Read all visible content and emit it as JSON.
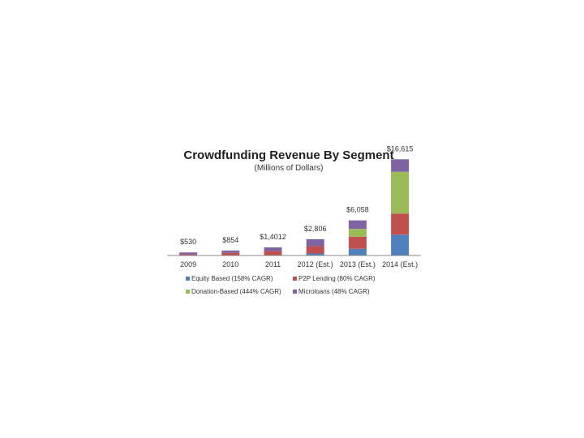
{
  "chart_data": {
    "type": "bar",
    "stacked": true,
    "title": "Crowdfunding Revenue By Segment",
    "subtitle": "(Millions of Dollars)",
    "xlabel": "",
    "ylabel": "",
    "categories": [
      "2009",
      "2010",
      "2011",
      "2012 (Est.)",
      "2013 (Est.)",
      "2014 (Est.)"
    ],
    "totals": [
      "$530",
      "$854",
      "$1,4012",
      "$2,806",
      "$6,058",
      "$16,615"
    ],
    "series": [
      {
        "name": "Equity Based (158% CAGR)",
        "color": "#4f81bd",
        "values": [
          0,
          0,
          60,
          350,
          1150,
          3600
        ]
      },
      {
        "name": "P2P Lending (80% CAGR)",
        "color": "#c0504d",
        "values": [
          200,
          470,
          700,
          1250,
          2100,
          3650
        ]
      },
      {
        "name": "Donation-Based (444% CAGR)",
        "color": "#9bbb59",
        "values": [
          0,
          0,
          0,
          0,
          1350,
          7200
        ]
      },
      {
        "name": "Microloans (48% CAGR)",
        "color": "#8064a2",
        "values": [
          330,
          384,
          640,
          1206,
          1458,
          2165
        ]
      }
    ],
    "ylim": [
      0,
      17500
    ],
    "grid": false,
    "legend_position": "bottom"
  }
}
